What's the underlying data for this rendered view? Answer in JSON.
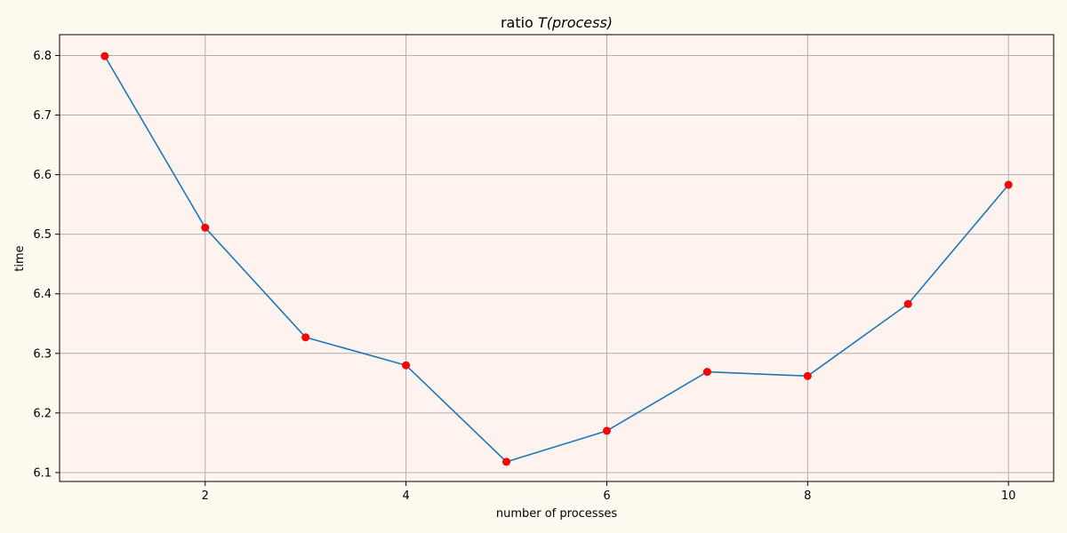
{
  "chart_data": {
    "type": "line",
    "title_prefix": "ratio ",
    "title_math": "T(process)",
    "xlabel": "number of processes",
    "ylabel": "time",
    "x": [
      1,
      2,
      3,
      4,
      5,
      6,
      7,
      8,
      9,
      10
    ],
    "series": [
      {
        "values": [
          6.799,
          6.511,
          6.327,
          6.28,
          6.118,
          6.17,
          6.269,
          6.262,
          6.383,
          6.583
        ]
      }
    ],
    "xlim": [
      0.55,
      10.45
    ],
    "ylim": [
      6.085,
      6.835
    ],
    "xticks": [
      2,
      4,
      6,
      8,
      10
    ],
    "yticks": [
      6.1,
      6.2,
      6.3,
      6.4,
      6.5,
      6.6,
      6.7,
      6.8
    ],
    "xtick_labels": [
      "2",
      "4",
      "6",
      "8",
      "10"
    ],
    "ytick_labels": [
      "6.1",
      "6.2",
      "6.3",
      "6.4",
      "6.5",
      "6.6",
      "6.7",
      "6.8"
    ],
    "grid": true,
    "colors": {
      "line": "#1f77b4",
      "marker": "#ff0000",
      "plot_background": "#fff3ef",
      "figure_background": "#fffaf0",
      "grid": "#b0b0b0"
    }
  }
}
